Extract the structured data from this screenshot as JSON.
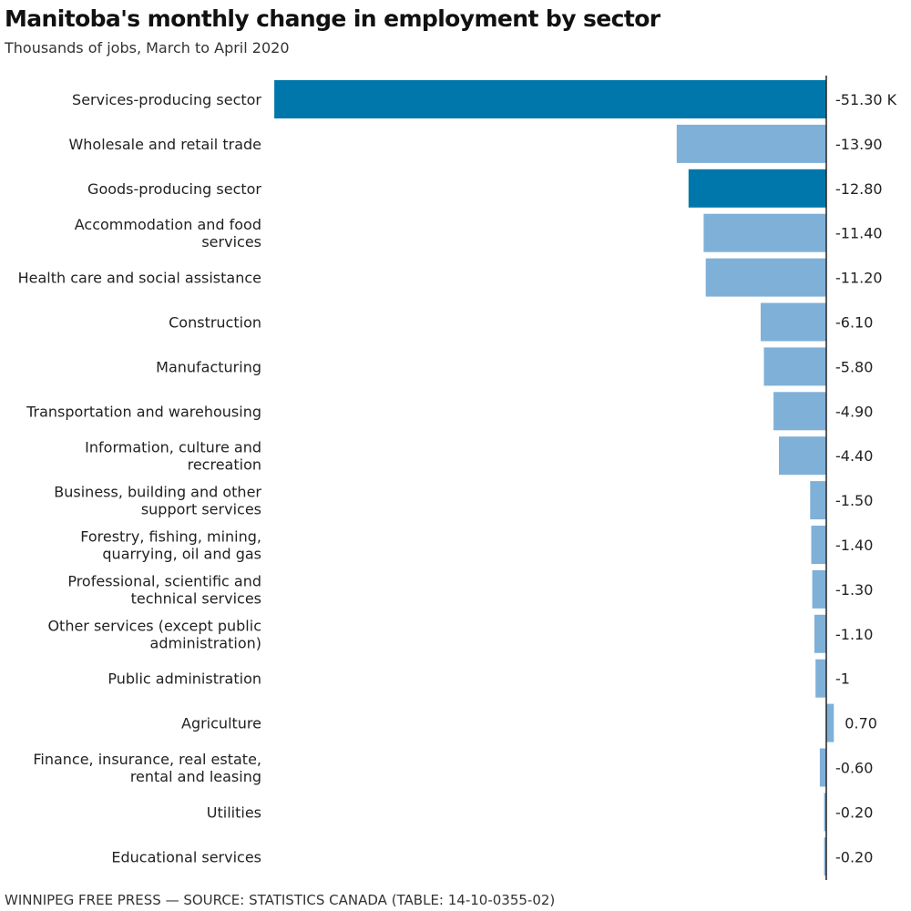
{
  "title": "Manitoba's monthly change in employment by sector",
  "subtitle": "Thousands of jobs, March to April 2020",
  "source": "WINNIPEG FREE PRESS — SOURCE: STATISTICS CANADA (TABLE: 14-10-0355-02)",
  "colors": {
    "total_bar": "#0077aa",
    "sector_bar": "#7fb0d8",
    "axis": "#222222"
  },
  "chart_data": {
    "type": "bar",
    "orientation": "horizontal",
    "title": "Manitoba's monthly change in employment by sector",
    "subtitle": "Thousands of jobs, March to April 2020",
    "categories": [
      "Services-producing sector",
      "Wholesale and retail trade",
      "Goods-producing sector",
      "Accommodation and food services",
      "Health care and social assistance",
      "Construction",
      "Manufacturing",
      "Transportation and warehousing",
      "Information, culture and recreation",
      "Business, building and other support services",
      "Forestry, fishing, mining, quarrying, oil and gas",
      "Professional, scientific and technical services",
      "Other services (except public administration)",
      "Public administration",
      "Agriculture",
      "Finance, insurance, real estate, rental and leasing",
      "Utilities",
      "Educational services"
    ],
    "category_lines": [
      [
        "Services-producing sector"
      ],
      [
        "Wholesale and retail trade"
      ],
      [
        "Goods-producing sector"
      ],
      [
        "Accommodation and food",
        "services"
      ],
      [
        "Health care and social assistance"
      ],
      [
        "Construction"
      ],
      [
        "Manufacturing"
      ],
      [
        "Transportation and warehousing"
      ],
      [
        "Information, culture and",
        "recreation"
      ],
      [
        "Business, building and other",
        "support services"
      ],
      [
        "Forestry, fishing, mining,",
        "quarrying, oil and gas"
      ],
      [
        "Professional, scientific and",
        "technical services"
      ],
      [
        "Other services (except public",
        "administration)"
      ],
      [
        "Public administration"
      ],
      [
        "Agriculture"
      ],
      [
        "Finance, insurance, real estate,",
        "rental and leasing"
      ],
      [
        "Utilities"
      ],
      [
        "Educational services"
      ]
    ],
    "values": [
      -51.3,
      -13.9,
      -12.8,
      -11.4,
      -11.2,
      -6.1,
      -5.8,
      -4.9,
      -4.4,
      -1.5,
      -1.4,
      -1.3,
      -1.1,
      -1,
      0.7,
      -0.6,
      -0.2,
      -0.2
    ],
    "value_labels": [
      "-51.30 K",
      "-13.90",
      "-12.80",
      "-11.40",
      "-11.20",
      "-6.10",
      "-5.80",
      "-4.90",
      "-4.40",
      "-1.50",
      "-1.40",
      "-1.30",
      "-1.10",
      "-1",
      "0.70",
      "-0.60",
      "-0.20",
      "-0.20"
    ],
    "highlighted": [
      true,
      false,
      true,
      false,
      false,
      false,
      false,
      false,
      false,
      false,
      false,
      false,
      false,
      false,
      false,
      false,
      false,
      false
    ],
    "xlim": [
      -51.3,
      0.7
    ],
    "grid": false,
    "legend": "none"
  }
}
